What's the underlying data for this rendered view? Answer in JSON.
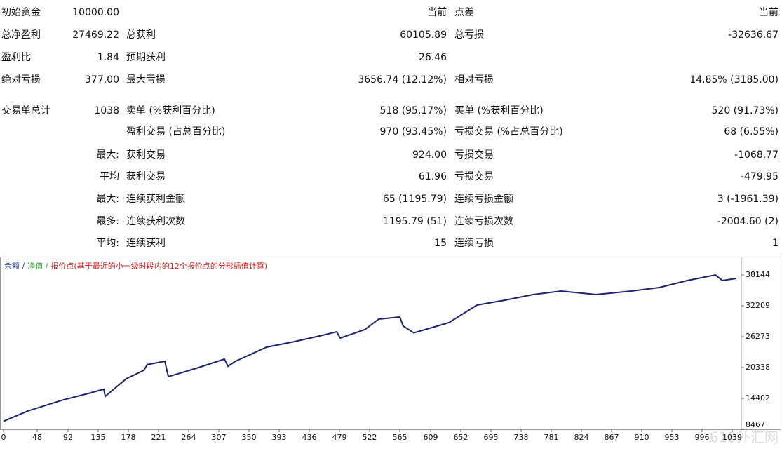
{
  "table": {
    "rows": [
      [
        "初始资金",
        "10000.00",
        null,
        "当前",
        "点差",
        "当前"
      ],
      [
        "总净盈利",
        "27469.22",
        "总获利",
        "60105.89",
        "总亏损",
        "-32636.67"
      ],
      [
        "盈利比",
        "1.84",
        "预期获利",
        "26.46",
        null,
        null
      ],
      [
        "绝对亏损",
        "377.00",
        "最大亏损",
        "3656.74 (12.12%)",
        "相对亏损",
        "14.85% (3185.00)"
      ],
      [
        "交易单总计",
        "1038",
        "卖单 (%获利百分比)",
        "518 (95.17%)",
        "买单 (%获利百分比)",
        "520 (91.73%)"
      ],
      [
        null,
        null,
        "盈利交易 (占总百分比)",
        "970 (93.45%)",
        "亏损交易 (%占总百分比)",
        "68 (6.55%)"
      ],
      [
        null,
        "最大:",
        "获利交易",
        "924.00",
        "亏损交易",
        "-1068.77"
      ],
      [
        null,
        "平均",
        "获利交易",
        "61.96",
        "亏损交易",
        "-479.95"
      ],
      [
        null,
        "最大:",
        "连续获利金额",
        "65 (1195.79)",
        "连续亏损金额",
        "3 (-1961.39)"
      ],
      [
        null,
        "最多:",
        "连续获利次数",
        "1195.79 (51)",
        "连续亏损次数",
        "-2004.60 (2)"
      ],
      [
        null,
        "平均:",
        "连续获利",
        "15",
        "连续亏损",
        "1"
      ]
    ]
  },
  "chart_data": {
    "type": "line",
    "legend": [
      {
        "text": "余额 /",
        "color": "#1f3a93"
      },
      {
        "text": "净值 /",
        "color": "#2e9a2e"
      },
      {
        "text": "报价点(基于最近的小一级时段内的12个报价点的分形插值计算)",
        "color": "#d62020"
      }
    ],
    "x": [
      0,
      35,
      85,
      125,
      143,
      145,
      175,
      200,
      205,
      230,
      235,
      275,
      315,
      320,
      330,
      375,
      415,
      455,
      475,
      480,
      515,
      535,
      565,
      570,
      585,
      635,
      675,
      715,
      755,
      795,
      845,
      895,
      935,
      975,
      1015,
      1025,
      1045
    ],
    "series": [
      {
        "name": "余额",
        "color": "#1c2370",
        "values": [
          10000,
          12000,
          14100,
          15500,
          16170,
          14800,
          18180,
          19800,
          20900,
          21550,
          18580,
          20200,
          21960,
          20600,
          21500,
          24250,
          25330,
          26540,
          27220,
          26000,
          27620,
          29640,
          30050,
          28300,
          27000,
          28970,
          32340,
          33290,
          34370,
          35040,
          34370,
          35040,
          35720,
          37070,
          38144,
          37070,
          37469
        ]
      }
    ],
    "xlim": [
      0,
      1052
    ],
    "xticks": [
      0,
      48,
      92,
      135,
      178,
      221,
      264,
      307,
      350,
      393,
      436,
      479,
      522,
      565,
      609,
      652,
      695,
      738,
      781,
      824,
      867,
      910,
      953,
      996,
      1039
    ],
    "ylim": [
      8467,
      41382
    ],
    "yticks": [
      8467,
      14402,
      20338,
      26273,
      32209,
      38144
    ]
  },
  "watermark": "618外汇网"
}
